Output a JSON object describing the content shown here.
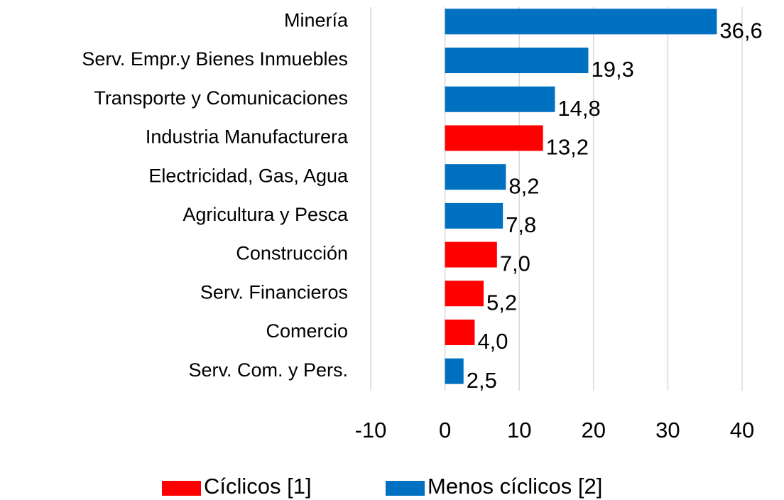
{
  "chart_data": {
    "type": "bar",
    "orientation": "horizontal",
    "categories": [
      "Minería",
      "Serv. Empr.y Bienes Inmuebles",
      "Transporte y Comunicaciones",
      "Industria Manufacturera",
      "Electricidad, Gas, Agua",
      "Agricultura y Pesca",
      "Construcción",
      "Serv. Financieros",
      "Comercio",
      "Serv. Com. y Pers."
    ],
    "series": [
      {
        "name": "Cíclicos [1]",
        "color": "#ff0000",
        "values": [
          null,
          null,
          null,
          13.2,
          null,
          null,
          7.0,
          5.2,
          4.0,
          null
        ],
        "value_labels": [
          null,
          null,
          null,
          "13,2",
          null,
          null,
          "7,0",
          "5,2",
          "4,0",
          null
        ]
      },
      {
        "name": "Menos cíclicos [2]",
        "color": "#0070c0",
        "values": [
          36.6,
          19.3,
          14.8,
          null,
          8.2,
          7.8,
          null,
          null,
          null,
          2.5
        ],
        "value_labels": [
          "36,6",
          "19,3",
          "14,8",
          null,
          "8,2",
          "7,8",
          null,
          null,
          null,
          "2,5"
        ]
      }
    ],
    "xlim": [
      -10,
      40
    ],
    "xticks": [
      -10,
      0,
      10,
      20,
      30,
      40
    ],
    "grid": true,
    "legend": "bottom"
  }
}
